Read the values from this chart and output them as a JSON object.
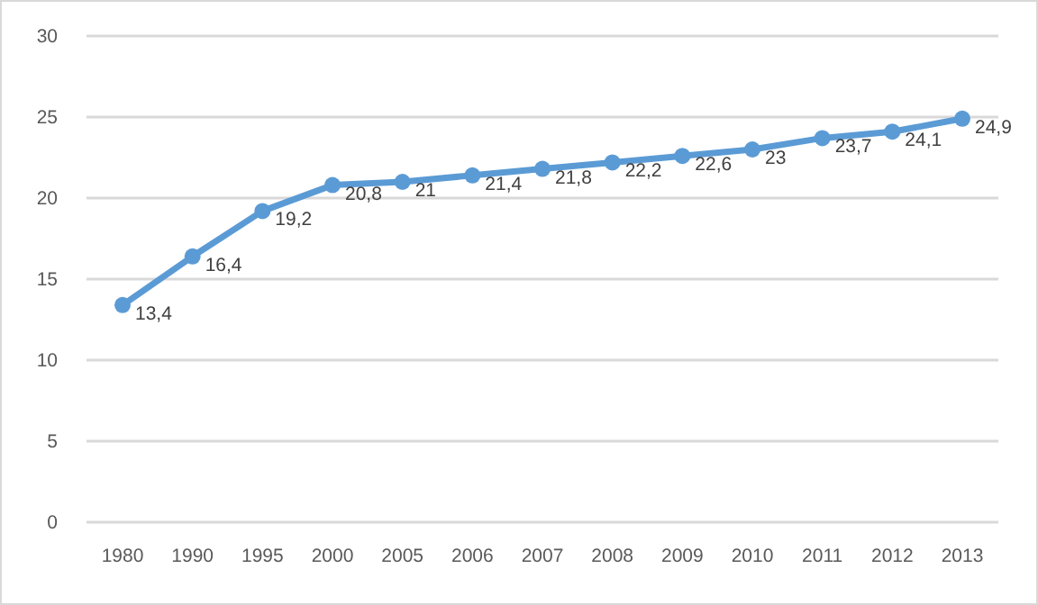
{
  "chart_data": {
    "type": "line",
    "categories": [
      "1980",
      "1990",
      "1995",
      "2000",
      "2005",
      "2006",
      "2007",
      "2008",
      "2009",
      "2010",
      "2011",
      "2012",
      "2013"
    ],
    "series": [
      {
        "color": "#5b9bd5",
        "values": [
          13.4,
          16.4,
          19.2,
          20.8,
          21,
          21.4,
          21.8,
          22.2,
          22.6,
          23,
          23.7,
          24.1,
          24.9
        ],
        "value_labels": [
          "13,4",
          "16,4",
          "19,2",
          "20,8",
          "21",
          "21,4",
          "21,8",
          "22,2",
          "22,6",
          "23",
          "23,7",
          "24,1",
          "24,9"
        ]
      }
    ],
    "ylim": [
      0,
      30
    ],
    "yticks": [
      0,
      5,
      10,
      15,
      20,
      25,
      30
    ],
    "grid": "y",
    "marker": "circle",
    "line_style": "solid"
  }
}
